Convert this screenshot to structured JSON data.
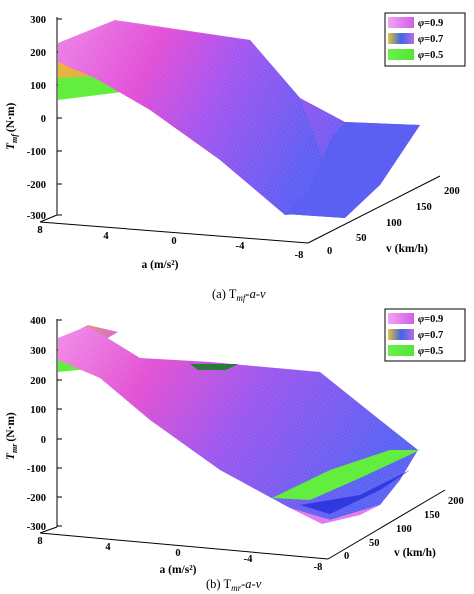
{
  "chart_data": [
    {
      "type": "surface",
      "caption": "(a) T",
      "caption_sub": "mf",
      "caption_tail": "-a-v",
      "zlabel_main": "T",
      "zlabel_sub": "mf",
      "zlabel_unit": "(N·m)",
      "xlabel": "a (m/s²)",
      "ylabel": "v (km/h)",
      "zticks": [
        "300",
        "200",
        "100",
        "0",
        "-100",
        "-200",
        "-300"
      ],
      "zlim": [
        -300,
        300
      ],
      "aticks": [
        "8",
        "4",
        "0",
        "-4",
        "-8"
      ],
      "vticks": [
        "0",
        "50",
        "100",
        "150",
        "200"
      ],
      "legend": [
        {
          "symbol": "φ",
          "label": "=0.9",
          "color": "#e27bf2"
        },
        {
          "symbol": "φ",
          "label": "=0.7",
          "color": "#c86ce0"
        },
        {
          "symbol": "φ",
          "label": "=0.5",
          "color": "#63ee3f"
        }
      ],
      "series": [
        {
          "name": "φ=0.9",
          "a_range": [
            8,
            -8
          ],
          "v_range": [
            0,
            200
          ],
          "z_at_a8": 220,
          "z_at_a_neg8": -300
        },
        {
          "name": "φ=0.7",
          "a_range": [
            8,
            -8
          ],
          "v_range": [
            0,
            200
          ],
          "z_at_a8": 175,
          "z_at_a_neg8": -290
        },
        {
          "name": "φ=0.5",
          "a_range": [
            8,
            -8
          ],
          "v_range": [
            0,
            200
          ],
          "z_at_a8": 130,
          "z_at_a_neg8": -280
        }
      ]
    },
    {
      "type": "surface",
      "caption": "(b) T",
      "caption_sub": "mr",
      "caption_tail": "-a-v",
      "zlabel_main": "T",
      "zlabel_sub": "mr",
      "zlabel_unit": "(N·m)",
      "xlabel": "a (m/s²)",
      "ylabel": "v (km/h)",
      "zticks": [
        "400",
        "300",
        "200",
        "100",
        "0",
        "-100",
        "-200",
        "-300"
      ],
      "zlim": [
        -300,
        400
      ],
      "aticks": [
        "8",
        "4",
        "0",
        "-4",
        "-8"
      ],
      "vticks": [
        "0",
        "50",
        "100",
        "150",
        "200"
      ],
      "legend": [
        {
          "symbol": "φ",
          "label": "=0.9",
          "color": "#e27bf2"
        },
        {
          "symbol": "φ",
          "label": "=0.7",
          "color": "#c86ce0"
        },
        {
          "symbol": "φ",
          "label": "=0.5",
          "color": "#63ee3f"
        }
      ],
      "series": [
        {
          "name": "φ=0.9",
          "a_range": [
            8,
            -8
          ],
          "v_range": [
            0,
            200
          ],
          "z_at_a8": 330,
          "z_at_a_neg8": -250
        },
        {
          "name": "φ=0.7",
          "a_range": [
            8,
            -8
          ],
          "v_range": [
            0,
            200
          ],
          "z_at_a8": 320,
          "z_at_a_neg8": -230
        },
        {
          "name": "φ=0.5",
          "a_range": [
            8,
            -8
          ],
          "v_range": [
            0,
            200
          ],
          "z_at_a8": 260,
          "z_at_a_neg8": -200
        }
      ]
    }
  ]
}
